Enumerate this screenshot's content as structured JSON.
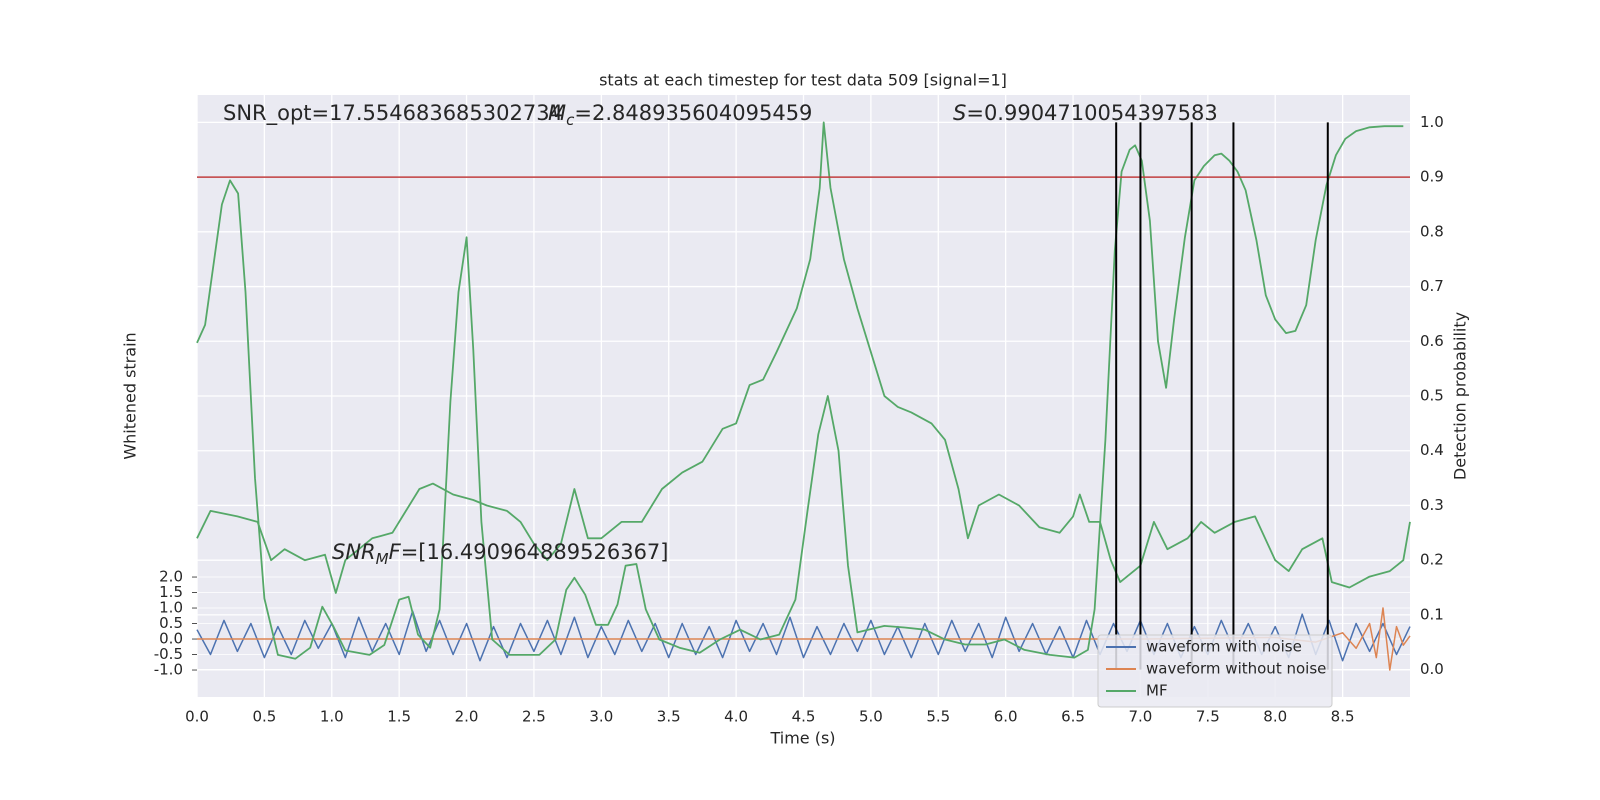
{
  "chart_data": {
    "type": "line",
    "title": "stats at each timestep for test data 509 [signal=1]",
    "x_label": "Time (s)",
    "y_label": "Whitened strain",
    "y2_label": "Detection probability",
    "xlim": [
      0,
      9.0
    ],
    "xticks": [
      {
        "value": 0,
        "label": "0.0"
      },
      0.5,
      {
        "value": 1,
        "label": "1.0"
      },
      1.5,
      {
        "value": 2,
        "label": "2.0"
      },
      2.5,
      {
        "value": 3,
        "label": "3.0"
      },
      3.5,
      {
        "value": 4,
        "label": "4.0"
      },
      4.5,
      {
        "value": 5,
        "label": "5.0"
      },
      5.5,
      {
        "value": 6,
        "label": "6.0"
      },
      6.5,
      {
        "value": 7,
        "label": "7.0"
      },
      7.5,
      {
        "value": 8,
        "label": "8.0"
      },
      8.5
    ],
    "ylim": [
      -1.87,
      17.55
    ],
    "yticks": [
      {
        "value": -1,
        "label": "-1.0"
      },
      -0.5,
      {
        "value": 0,
        "label": "0.0"
      },
      0.5,
      {
        "value": 1,
        "label": "1.0"
      },
      1.5,
      {
        "value": 2,
        "label": "2.0"
      }
    ],
    "y2lim": [
      -0.05,
      1.05
    ],
    "y2ticks": [
      {
        "value": 0,
        "label": "0.0"
      },
      0.1,
      0.2,
      0.3,
      0.4,
      0.5,
      0.6,
      0.7,
      0.8,
      0.9,
      {
        "value": 1,
        "label": "1.0"
      }
    ],
    "grid": true,
    "legend": "lower right",
    "threshold": {
      "value": 0.9,
      "color": "#c03d3e",
      "axis": "y2"
    },
    "vlines": {
      "x": [
        6.82,
        7.0,
        7.38,
        7.69,
        8.39
      ],
      "color": "#000000"
    },
    "annotations": [
      {
        "text": "SNR_opt=17.554683685302734"
      },
      {
        "symbol": "M",
        "sub": "c",
        "text": "=2.848935604095459"
      },
      {
        "symbol": "S",
        "text": "=0.9904710054397583"
      },
      {
        "symbol": "SNR",
        "sub": "M",
        "tail": "F",
        "text": "=[16.490964889526367]"
      }
    ],
    "series": [
      {
        "name": "waveform with noise",
        "color": "#4c72b0",
        "x": [
          0,
          0.1,
          0.2,
          0.3,
          0.4,
          0.5,
          0.6,
          0.7,
          0.8,
          0.9,
          1.0,
          1.1,
          1.2,
          1.3,
          1.4,
          1.5,
          1.6,
          1.7,
          1.8,
          1.9,
          2.0,
          2.1,
          2.2,
          2.3,
          2.4,
          2.5,
          2.6,
          2.7,
          2.8,
          2.9,
          3.0,
          3.1,
          3.2,
          3.3,
          3.4,
          3.5,
          3.6,
          3.7,
          3.8,
          3.9,
          4.0,
          4.1,
          4.2,
          4.3,
          4.4,
          4.5,
          4.6,
          4.7,
          4.8,
          4.9,
          5.0,
          5.1,
          5.2,
          5.3,
          5.4,
          5.5,
          5.6,
          5.7,
          5.8,
          5.9,
          6.0,
          6.1,
          6.2,
          6.3,
          6.4,
          6.5,
          6.6,
          6.7,
          6.8,
          6.9,
          7.0,
          7.1,
          7.2,
          7.3,
          7.4,
          7.5,
          7.6,
          7.7,
          7.8,
          7.9,
          8.0,
          8.1,
          8.2,
          8.3,
          8.4,
          8.5,
          8.6,
          8.7,
          8.8,
          8.9,
          9.0
        ],
        "values": [
          0.3,
          -0.5,
          0.6,
          -0.4,
          0.5,
          -0.6,
          0.4,
          -0.5,
          0.6,
          -0.3,
          0.5,
          -0.6,
          0.7,
          -0.4,
          0.5,
          -0.5,
          0.9,
          -0.4,
          0.6,
          -0.5,
          0.5,
          -0.7,
          0.4,
          -0.6,
          0.5,
          -0.4,
          0.6,
          -0.5,
          0.7,
          -0.6,
          0.4,
          -0.5,
          0.6,
          -0.4,
          0.5,
          -0.6,
          0.5,
          -0.5,
          0.4,
          -0.6,
          0.6,
          -0.4,
          0.5,
          -0.5,
          0.7,
          -0.6,
          0.4,
          -0.5,
          0.5,
          -0.4,
          0.6,
          -0.5,
          0.4,
          -0.6,
          0.5,
          -0.5,
          0.6,
          -0.4,
          0.5,
          -0.6,
          0.7,
          -0.4,
          0.5,
          -0.5,
          0.4,
          -0.6,
          0.6,
          -0.5,
          0.5,
          -0.4,
          0.6,
          -0.5,
          0.5,
          -0.6,
          0.4,
          -0.5,
          0.6,
          -0.4,
          0.5,
          -0.5,
          0.4,
          -0.6,
          0.8,
          -0.5,
          0.6,
          -0.7,
          0.5,
          -0.4,
          0.5,
          -0.5,
          0.4
        ]
      },
      {
        "name": "waveform without noise",
        "color": "#dd8452",
        "x": [
          0,
          1,
          2,
          3,
          4,
          5,
          6,
          7,
          8,
          8.3,
          8.5,
          8.6,
          8.7,
          8.75,
          8.8,
          8.85,
          8.9,
          8.95,
          9.0
        ],
        "values": [
          0,
          0,
          0,
          0,
          0,
          0,
          0,
          0,
          0.05,
          -0.1,
          0.2,
          -0.3,
          0.5,
          -0.6,
          1.0,
          -1.0,
          0.4,
          -0.2,
          0.1
        ]
      },
      {
        "name": "MF",
        "color": "#55a868",
        "axis": "y2",
        "x": [
          0,
          0.1,
          0.3,
          0.45,
          0.55,
          0.65,
          0.8,
          0.95,
          1.03,
          1.1,
          1.3,
          1.45,
          1.55,
          1.65,
          1.75,
          1.9,
          2.05,
          2.15,
          2.3,
          2.4,
          2.5,
          2.6,
          2.7,
          2.8,
          2.9,
          3.0,
          3.15,
          3.3,
          3.45,
          3.6,
          3.75,
          3.9,
          4.0,
          4.1,
          4.2,
          4.3,
          4.45,
          4.55,
          4.62,
          4.65,
          4.7,
          4.8,
          4.9,
          5.0,
          5.1,
          5.2,
          5.3,
          5.45,
          5.55,
          5.65,
          5.72,
          5.8,
          5.95,
          6.1,
          6.25,
          6.4,
          6.5,
          6.55,
          6.62,
          6.7,
          6.78,
          6.85,
          7.0,
          7.1,
          7.2,
          7.35,
          7.45,
          7.55,
          7.7,
          7.85,
          8.0,
          8.1,
          8.2,
          8.35,
          8.42,
          8.55,
          8.7,
          8.85,
          8.95,
          9.0
        ],
        "values": [
          0.24,
          0.29,
          0.28,
          0.27,
          0.2,
          0.22,
          0.2,
          0.21,
          0.14,
          0.2,
          0.24,
          0.25,
          0.29,
          0.33,
          0.34,
          0.32,
          0.31,
          0.3,
          0.29,
          0.27,
          0.23,
          0.2,
          0.23,
          0.33,
          0.24,
          0.24,
          0.27,
          0.27,
          0.33,
          0.36,
          0.38,
          0.44,
          0.45,
          0.52,
          0.53,
          0.58,
          0.66,
          0.75,
          0.88,
          1.0,
          0.88,
          0.75,
          0.66,
          0.58,
          0.5,
          0.48,
          0.47,
          0.45,
          0.42,
          0.33,
          0.24,
          0.3,
          0.32,
          0.3,
          0.26,
          0.25,
          0.28,
          0.32,
          0.27,
          0.27,
          0.2,
          0.16,
          0.19,
          0.27,
          0.22,
          0.24,
          0.27,
          0.25,
          0.27,
          0.28,
          0.2,
          0.18,
          0.22,
          0.24,
          0.16,
          0.15,
          0.17,
          0.18,
          0.2,
          0.27
        ]
      },
      {
        "color": "#55a868",
        "axis": "y2",
        "x": [
          0,
          0.06,
          0.185,
          0.245,
          0.305,
          0.36,
          0.43,
          0.5,
          0.6,
          0.73,
          0.84,
          0.93,
          1.01,
          1.1,
          1.28,
          1.39,
          1.5,
          1.57,
          1.64,
          1.73,
          1.8,
          1.88,
          1.94,
          2.0,
          2.05,
          2.11,
          2.19,
          2.32,
          2.54,
          2.66,
          2.74,
          2.8,
          2.88,
          2.96,
          3.05,
          3.12,
          3.18,
          3.26,
          3.33,
          3.43,
          3.58,
          3.73,
          3.88,
          4.03,
          4.18,
          4.32,
          4.44,
          4.53,
          4.61,
          4.68,
          4.76,
          4.83,
          4.9,
          4.98,
          5.1,
          5.25,
          5.4,
          5.55,
          5.7,
          5.85,
          5.99,
          6.14,
          6.33,
          6.51,
          6.61,
          6.66,
          6.74,
          6.81,
          6.86,
          6.92,
          6.96,
          7.01,
          7.07,
          7.13,
          7.19,
          7.25,
          7.33,
          7.4,
          7.47,
          7.55,
          7.6,
          7.66,
          7.72,
          7.78,
          7.86,
          7.93,
          8.0,
          8.08,
          8.15,
          8.23,
          8.3,
          8.38,
          8.45,
          8.52,
          8.6,
          8.7,
          8.81,
          8.95
        ],
        "values": [
          0.597,
          0.63,
          0.85,
          0.894,
          0.87,
          0.69,
          0.35,
          0.13,
          0.027,
          0.02,
          0.04,
          0.115,
          0.08,
          0.035,
          0.027,
          0.045,
          0.128,
          0.133,
          0.064,
          0.04,
          0.11,
          0.49,
          0.69,
          0.79,
          0.584,
          0.27,
          0.055,
          0.027,
          0.027,
          0.055,
          0.146,
          0.168,
          0.137,
          0.082,
          0.082,
          0.119,
          0.19,
          0.193,
          0.11,
          0.055,
          0.04,
          0.031,
          0.055,
          0.073,
          0.055,
          0.064,
          0.128,
          0.29,
          0.43,
          0.5,
          0.4,
          0.19,
          0.068,
          0.073,
          0.08,
          0.077,
          0.073,
          0.055,
          0.046,
          0.046,
          0.055,
          0.036,
          0.027,
          0.022,
          0.036,
          0.11,
          0.42,
          0.766,
          0.91,
          0.95,
          0.958,
          0.93,
          0.82,
          0.6,
          0.515,
          0.64,
          0.79,
          0.894,
          0.92,
          0.94,
          0.943,
          0.93,
          0.91,
          0.876,
          0.785,
          0.684,
          0.64,
          0.615,
          0.619,
          0.666,
          0.785,
          0.885,
          0.94,
          0.97,
          0.984,
          0.991,
          0.993,
          0.993
        ]
      }
    ]
  }
}
